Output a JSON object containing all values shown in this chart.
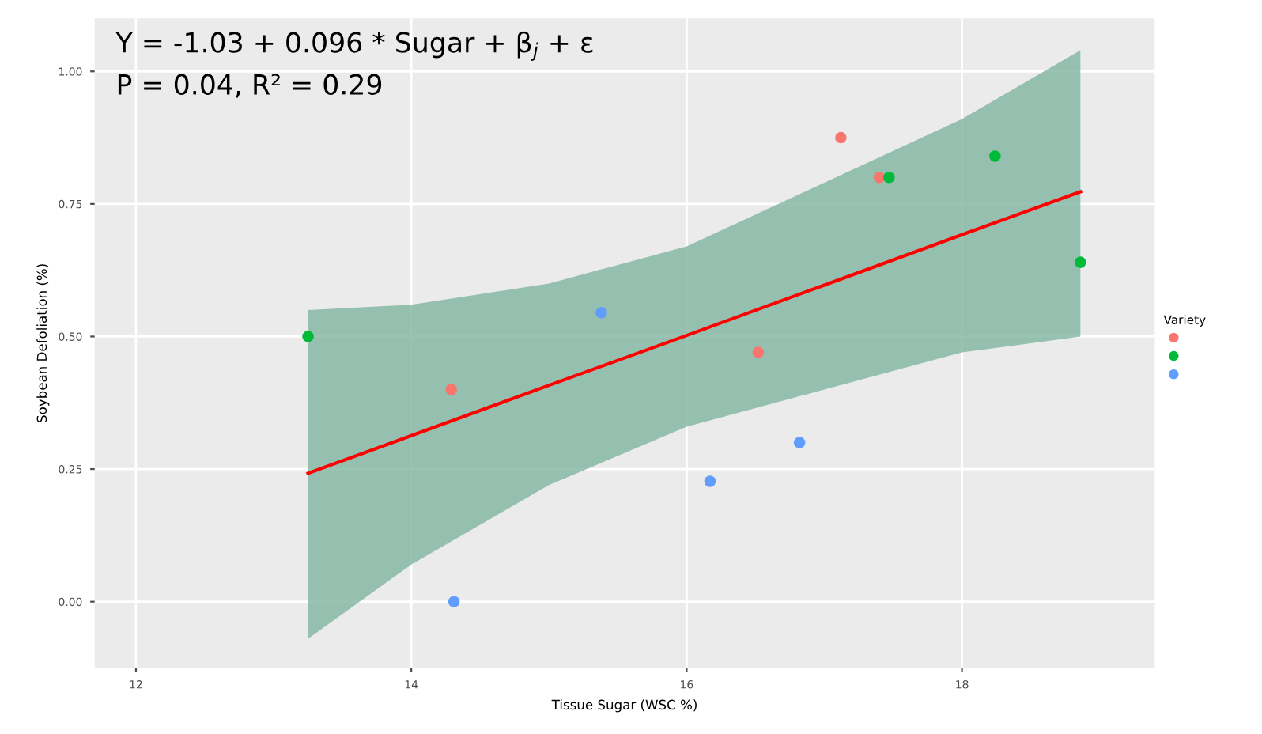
{
  "chart_data": {
    "type": "scatter",
    "xlabel": "Tissue Sugar (WSC %)",
    "ylabel": "Soybean Defoliation (%)",
    "legend_title": "Variety",
    "grid": true,
    "marker": "circle",
    "annotations": [
      "Y = -1.03 + 0.096 * Sugar + β$_{j}$ + ε",
      "P = 0.04, R² = 0.29"
    ],
    "xlim": [
      11.7,
      19.4
    ],
    "xticks": [
      12,
      14,
      16,
      18
    ],
    "ylim": [
      -0.125,
      1.1
    ],
    "yticks": [
      {
        "value": 0,
        "label": "0.00"
      },
      {
        "value": 0.25,
        "label": "0.25"
      },
      {
        "value": 0.5,
        "label": "0.50"
      },
      {
        "value": 0.75,
        "label": "0.75"
      },
      {
        "value": 1,
        "label": "1.00"
      }
    ],
    "series": [
      {
        "type": "line",
        "marker": "none",
        "color": "#ff0000",
        "x": [
          13.25,
          14,
          15,
          16,
          17,
          18,
          18.86
        ],
        "values": [
          0.242,
          0.313,
          0.408,
          0.502,
          0.597,
          0.692,
          0.773
        ],
        "lower": [
          -0.07,
          0.07,
          0.22,
          0.33,
          0.4,
          0.47,
          0.5
        ],
        "upper": [
          0.55,
          0.56,
          0.6,
          0.67,
          0.79,
          0.91,
          1.04
        ]
      },
      {
        "color": "#f8766d",
        "x": [
          14.29,
          16.52,
          17.12,
          17.4
        ],
        "values": [
          0.4,
          0.47,
          0.875,
          0.8
        ]
      },
      {
        "color": "#00ba38",
        "x": [
          13.25,
          17.47,
          18.24,
          18.86
        ],
        "values": [
          0.5,
          0.8,
          0.84,
          0.64
        ]
      },
      {
        "color": "#619cff",
        "x": [
          14.31,
          15.38,
          16.17,
          16.82
        ],
        "values": [
          0.0,
          0.545,
          0.227,
          0.3
        ]
      }
    ]
  }
}
